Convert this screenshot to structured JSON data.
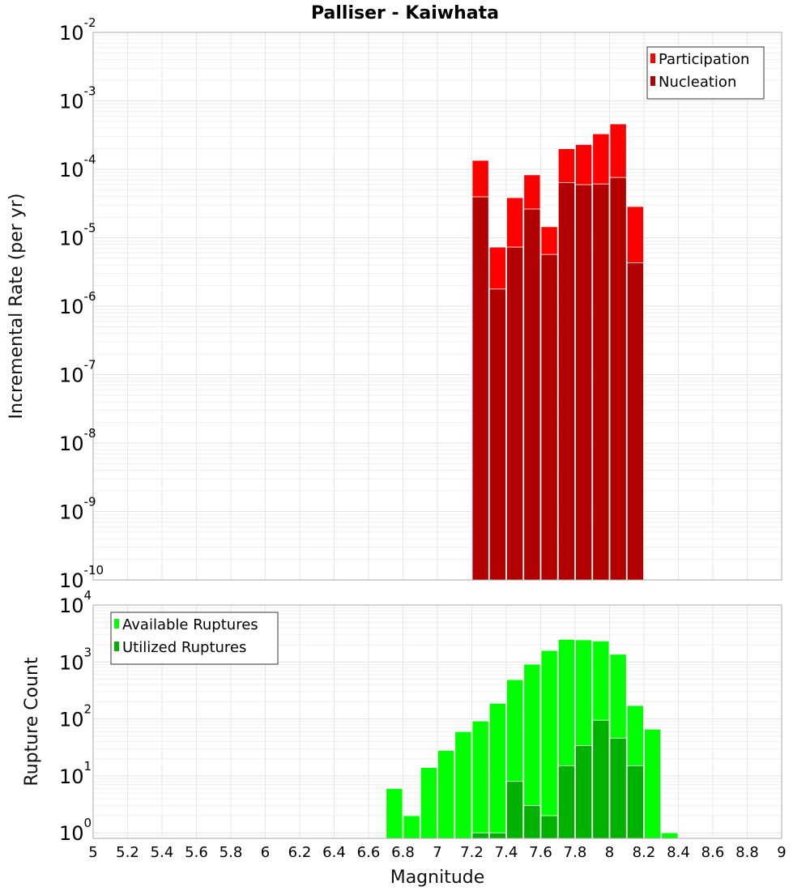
{
  "chart_data": [
    {
      "type": "bar",
      "title": "Palliser - Kaiwhata",
      "xlabel": "Magnitude",
      "ylabel": "Incremental Rate (per yr)",
      "yscale": "log",
      "xlim": [
        5,
        9
      ],
      "ylim": [
        1e-10,
        0.01
      ],
      "ytick_exponents": [
        -2,
        -3,
        -4,
        -5,
        -6,
        -7,
        -8,
        -9,
        -10
      ],
      "grid": true,
      "legend_position": "top-right",
      "x": [
        7.25,
        7.35,
        7.45,
        7.55,
        7.65,
        7.75,
        7.85,
        7.95,
        8.05,
        8.15
      ],
      "series": [
        {
          "name": "Participation",
          "color": "#ff0000",
          "values": [
            0.000135,
            7.3e-06,
            3.85e-05,
            8.3e-05,
            1.45e-05,
            0.0002,
            0.00023,
            0.00033,
            0.00046,
            2.86e-05
          ]
        },
        {
          "name": "Nucleation",
          "color": "#b20000",
          "values": [
            3.96e-05,
            1.78e-06,
            7.3e-06,
            2.63e-05,
            5.7e-06,
            6.4e-05,
            5.96e-05,
            6.1e-05,
            7.6e-05,
            4.3e-06
          ]
        }
      ]
    },
    {
      "type": "bar",
      "title": "",
      "xlabel": "Magnitude",
      "ylabel": "Rupture Count",
      "yscale": "log",
      "xlim": [
        5,
        9
      ],
      "ylim": [
        0.8,
        10000
      ],
      "ytick_exponents": [
        4,
        3,
        2,
        1,
        0
      ],
      "xticks": [
        "5",
        "5.2",
        "5.4",
        "5.6",
        "5.8",
        "6",
        "6.2",
        "6.4",
        "6.6",
        "6.8",
        "7",
        "7.2",
        "7.4",
        "7.6",
        "7.8",
        "8",
        "8.2",
        "8.4",
        "8.6",
        "8.8",
        "9"
      ],
      "grid": true,
      "legend_position": "top-left",
      "x": [
        6.75,
        6.85,
        6.95,
        7.05,
        7.15,
        7.25,
        7.35,
        7.45,
        7.55,
        7.65,
        7.75,
        7.85,
        7.95,
        8.05,
        8.15,
        8.25,
        8.35
      ],
      "series": [
        {
          "name": "Available Ruptures",
          "color": "#00ff00",
          "values": [
            6,
            2,
            14,
            28,
            60,
            92,
            188,
            490,
            914,
            1595,
            2500,
            2450,
            2340,
            1370,
            172,
            66,
            1
          ]
        },
        {
          "name": "Utilized Ruptures",
          "color": "#00b200",
          "values": [
            0,
            0,
            0,
            0,
            0,
            1,
            1,
            8,
            3,
            2,
            15,
            34,
            95,
            46,
            15,
            0,
            0
          ]
        }
      ]
    }
  ]
}
